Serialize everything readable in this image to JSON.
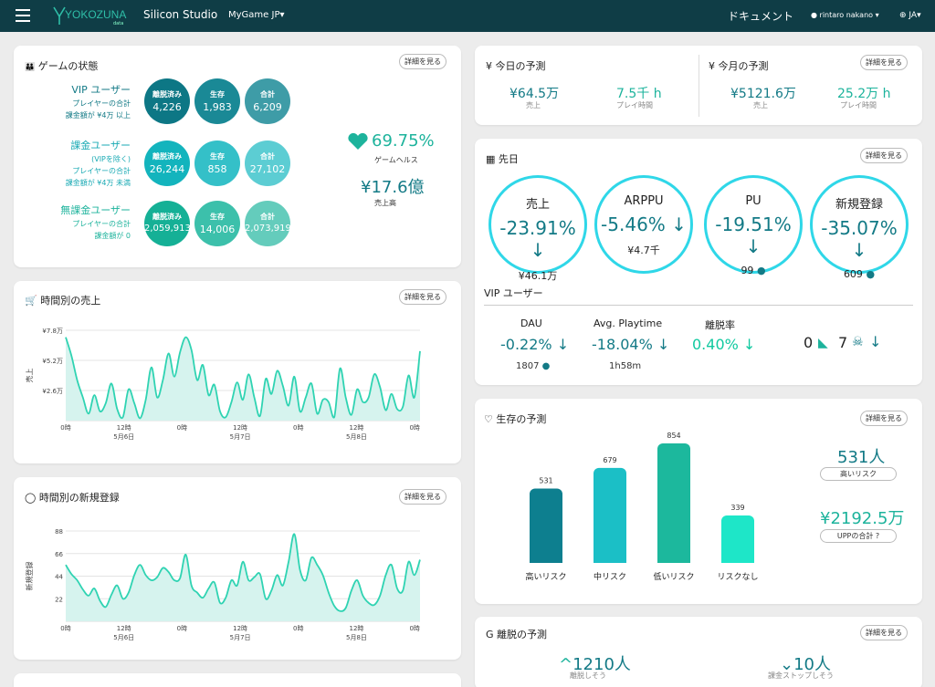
{
  "topbar": {
    "logo": "YOKOZUNA",
    "logo_sub": "data",
    "company": "Silicon Studio",
    "game": "MyGame JP",
    "docs": "ドキュメント",
    "user": "rintaro nakano",
    "lang": "JA"
  },
  "detail_label": "詳細を見る",
  "game_state": {
    "title": "ゲームの状態",
    "groups": [
      {
        "name": "VIP ユーザー",
        "line1": "プレイヤーの合計",
        "line2": "課金額が ¥4万 以上",
        "line3": "",
        "churned": "4,226",
        "alive": "1,983",
        "total": "6,209"
      },
      {
        "name": "課金ユーザー",
        "line1": "(VIPを除く)",
        "line2": "プレイヤーの合計",
        "line3": "課金額が ¥4万 未満",
        "churned": "26,244",
        "alive": "858",
        "total": "27,102"
      },
      {
        "name": "無課金ユーザー",
        "line1": "プレイヤーの合計",
        "line2": "課金額が 0",
        "line3": "",
        "churned": "2,059,913",
        "alive": "14,006",
        "total": "2,073,919"
      }
    ],
    "labels": {
      "churned": "離脱済み",
      "alive": "生存",
      "total": "合計"
    },
    "health_value": "69.75%",
    "health_label": "ゲームヘルス",
    "sales_value": "¥17.6億",
    "sales_label": "売上高"
  },
  "today": {
    "title": "¥ 今日の予測",
    "sales": "¥64.5万",
    "sales_label": "売上",
    "play": "7.5千 h",
    "play_label": "プレイ時間"
  },
  "month": {
    "title": "¥ 今月の予測",
    "sales": "¥5121.6万",
    "sales_label": "売上",
    "play": "25.2万 h",
    "play_label": "プレイ時間"
  },
  "previous_day": {
    "title": "先日",
    "kpis": [
      {
        "label": "売上",
        "change": "-23.91%",
        "sub": "¥46.1万",
        "person": false
      },
      {
        "label": "ARPPU",
        "change": "-5.46%",
        "sub": "¥4.7千",
        "person": false
      },
      {
        "label": "PU",
        "change": "-19.51%",
        "sub": "99",
        "person": true
      },
      {
        "label": "新規登録",
        "change": "-35.07%",
        "sub": "609",
        "person": true
      }
    ],
    "vip_title": "VIP ユーザー",
    "vip": [
      {
        "label": "DAU",
        "change": "-0.22%",
        "sub": "1807",
        "person": true,
        "color": "#137a86"
      },
      {
        "label": "Avg. Playtime",
        "change": "-18.04%",
        "sub": "1h58m",
        "person": false,
        "color": "#137a86"
      },
      {
        "label": "離脱率",
        "change": "0.40%",
        "sub": "",
        "person": false,
        "color": "#10c9a0"
      }
    ],
    "whale": "0",
    "skull": "7"
  },
  "hourly_sales": {
    "title": "時間別の売上"
  },
  "hourly_signups": {
    "title": "時間別の新規登録"
  },
  "survival": {
    "title": "生存の予測",
    "high_risk_value": "531人",
    "high_risk_label": "高いリスク",
    "upp_value": "¥2192.5万",
    "upp_label": "UPPの合計"
  },
  "churn": {
    "title": "離脱の予測",
    "a_value": "1210人",
    "a_label": "離脱しそう",
    "b_value": "10人",
    "b_label": "課金ストップしそう"
  },
  "chart_data": [
    {
      "type": "area",
      "title": "時間別の売上",
      "ylabel": "売上",
      "yticks": [
        "¥7.8万",
        "¥5.2万",
        "¥2.6万"
      ],
      "ylim": [
        0,
        7.8
      ],
      "y_unit": "万円",
      "xticks": [
        "0時",
        "12時",
        "0時",
        "12時",
        "0時",
        "12時",
        "0時"
      ],
      "xdates": [
        "5月6日",
        "5月7日",
        "5月8日"
      ],
      "values": [
        7.2,
        5.6,
        3.5,
        2.0,
        0.6,
        2.2,
        0.8,
        1.5,
        3.2,
        1.0,
        0.3,
        2.7,
        1.5,
        0.2,
        1.8,
        4.6,
        2.0,
        3.5,
        5.8,
        3.8,
        5.9,
        7.2,
        6.1,
        3.5,
        4.8,
        2.2,
        3.1,
        0.8,
        0.3,
        1.6,
        3.3,
        1.8,
        4.0,
        2.0,
        0.4,
        3.6,
        2.3,
        4.3,
        3.0,
        1.3,
        3.8,
        0.8,
        2.0,
        3.2,
        0.6,
        1.8,
        1.6,
        0.3,
        4.5,
        2.0,
        0.5,
        2.7,
        1.6,
        2.0,
        4.0,
        2.9,
        0.9,
        2.3,
        1.0,
        1.2,
        3.9,
        2.0,
        6.0
      ],
      "grid": true
    },
    {
      "type": "area",
      "title": "時間別の新規登録",
      "ylabel": "新規登録",
      "yticks": [
        "88",
        "66",
        "44",
        "22"
      ],
      "ylim": [
        0,
        88
      ],
      "xticks": [
        "0時",
        "12時",
        "0時",
        "12時",
        "0時",
        "12時",
        "0時"
      ],
      "xdates": [
        "5月6日",
        "5月7日",
        "5月8日"
      ],
      "values": [
        55,
        46,
        40,
        31,
        25,
        32,
        20,
        14,
        26,
        35,
        22,
        28,
        45,
        55,
        45,
        40,
        43,
        52,
        48,
        40,
        42,
        65,
        35,
        28,
        23,
        32,
        38,
        18,
        23,
        40,
        35,
        58,
        40,
        43,
        46,
        22,
        30,
        45,
        35,
        58,
        85,
        50,
        40,
        62,
        55,
        45,
        28,
        15,
        10,
        13,
        30,
        40,
        25,
        18,
        16,
        25,
        45,
        55,
        32,
        30,
        58,
        45,
        60
      ],
      "grid": true
    },
    {
      "type": "bar",
      "title": "生存の予測",
      "categories": [
        "高いリスク",
        "中リスク",
        "低いリスク",
        "リスクなし"
      ],
      "values": [
        531,
        679,
        854,
        339
      ],
      "colors": [
        "#0d7f8f",
        "#1bbfc6",
        "#1cb89d",
        "#1ee6c8"
      ]
    }
  ]
}
